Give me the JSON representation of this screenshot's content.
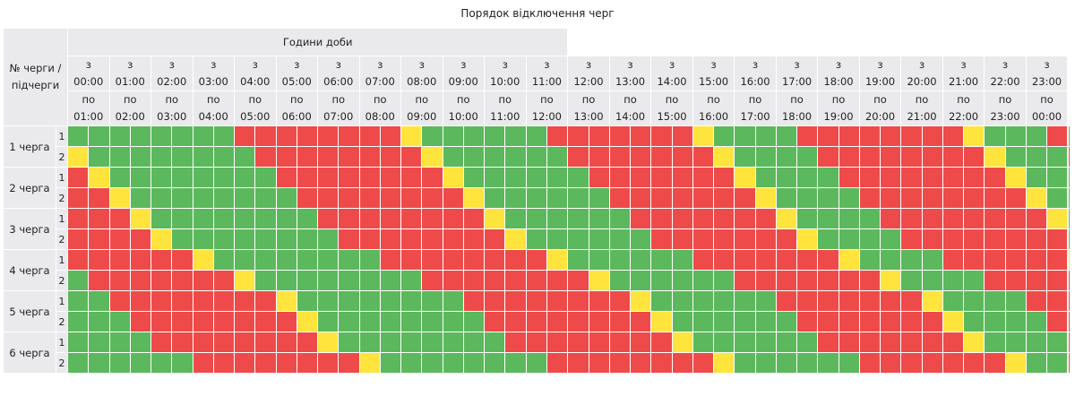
{
  "title": "Порядок відключення черг",
  "header": {
    "corner_label": "№ черги / підчерги",
    "hours_label": "Години доби",
    "from_prefix": "з",
    "to_prefix": "по",
    "from_times": [
      "00:00",
      "01:00",
      "02:00",
      "03:00",
      "04:00",
      "05:00",
      "06:00",
      "07:00",
      "08:00",
      "09:00",
      "10:00",
      "11:00",
      "12:00",
      "13:00",
      "14:00",
      "15:00",
      "16:00",
      "17:00",
      "18:00",
      "19:00",
      "20:00",
      "21:00",
      "22:00",
      "23:00"
    ],
    "to_times": [
      "01:00",
      "02:00",
      "03:00",
      "04:00",
      "05:00",
      "06:00",
      "07:00",
      "08:00",
      "09:00",
      "10:00",
      "11:00",
      "12:00",
      "13:00",
      "14:00",
      "15:00",
      "16:00",
      "17:00",
      "18:00",
      "19:00",
      "20:00",
      "21:00",
      "22:00",
      "23:00",
      "00:00"
    ]
  },
  "colors": {
    "on": "#5cb85c",
    "off": "#ef4a4a",
    "maybe": "#ffe43d"
  },
  "status_legend": {
    "G": "on",
    "R": "off",
    "Y": "maybe"
  },
  "queues": [
    {
      "label": "1 черга",
      "subqueues": [
        {
          "label": "1",
          "slots": "GGGGGGGGRRRRRRRRYGGGGGGRRRRRRRYGGGGRRRRRRRRYGGGRRGGG"
        },
        {
          "label": "2",
          "slots": "YGGGGGGGGRRRRRRRRYGGGGGGRRRRRRRYGGGGRRRRRRRRYGGGRRGG"
        }
      ]
    },
    {
      "label": "2 черга",
      "subqueues": [
        {
          "label": "1",
          "slots": "RYGGGGGGGGRRRRRRRRYGGGGGGRRRRRRRYGGGGRRRRRRRRYGGGGRR"
        },
        {
          "label": "2",
          "slots": "RRYGGGGGGGGRRRRRRRRYGGGGGGRRRRRRRYGGGGRRRRRRRRYGGGGR"
        }
      ]
    },
    {
      "label": "3 черга",
      "subqueues": [
        {
          "label": "1",
          "slots": "RRRYGGGGGGGGRRRRRRRRYGGGGGGRRRRRRRYGGGGRRRRRRRRYGGGG"
        },
        {
          "label": "2",
          "slots": "RRRRYGGGGGGGGRRRRRRRRYGGGGGGRRRRRRRYGGGGRRRRRRRRYGGG"
        }
      ]
    },
    {
      "label": "4 черга",
      "subqueues": [
        {
          "label": "1",
          "slots": "RRRRRRYGGGGGGGGRRRRRRRRYGGGGGGRRRRRRRYGGGGRRRRRRRYGG"
        },
        {
          "label": "2",
          "slots": "GRRRRRRRYGGGGGGGGRRRRRRRRYGGGGGGRRRRRRRYGGGGRRRRRRYG"
        }
      ]
    },
    {
      "label": "5 черга",
      "subqueues": [
        {
          "label": "1",
          "slots": "GGRRRRRRRRYGGGGGGGGRRRRRRRRYGGGGGGRRRRRRRYGGGGRRRRRY"
        },
        {
          "label": "2",
          "slots": "GGGRRRRRRRRYGGGGGGGGRRRRRRRRYGGGGGGRRRRRRRYGGGGRRRRY"
        }
      ]
    },
    {
      "label": "6 черга",
      "subqueues": [
        {
          "label": "1",
          "slots": "GGGGRRRRRRRRYGGGGGGGGRRRRRRRRYGGGGGGRRRRRRRYGGGGRRRR"
        },
        {
          "label": "2",
          "slots": "GGGGGGRRRRRRRRYGGGGGGGGRRRRRRRRYGGGGGGRRRRRRRYGGGRRR"
        }
      ]
    }
  ]
}
